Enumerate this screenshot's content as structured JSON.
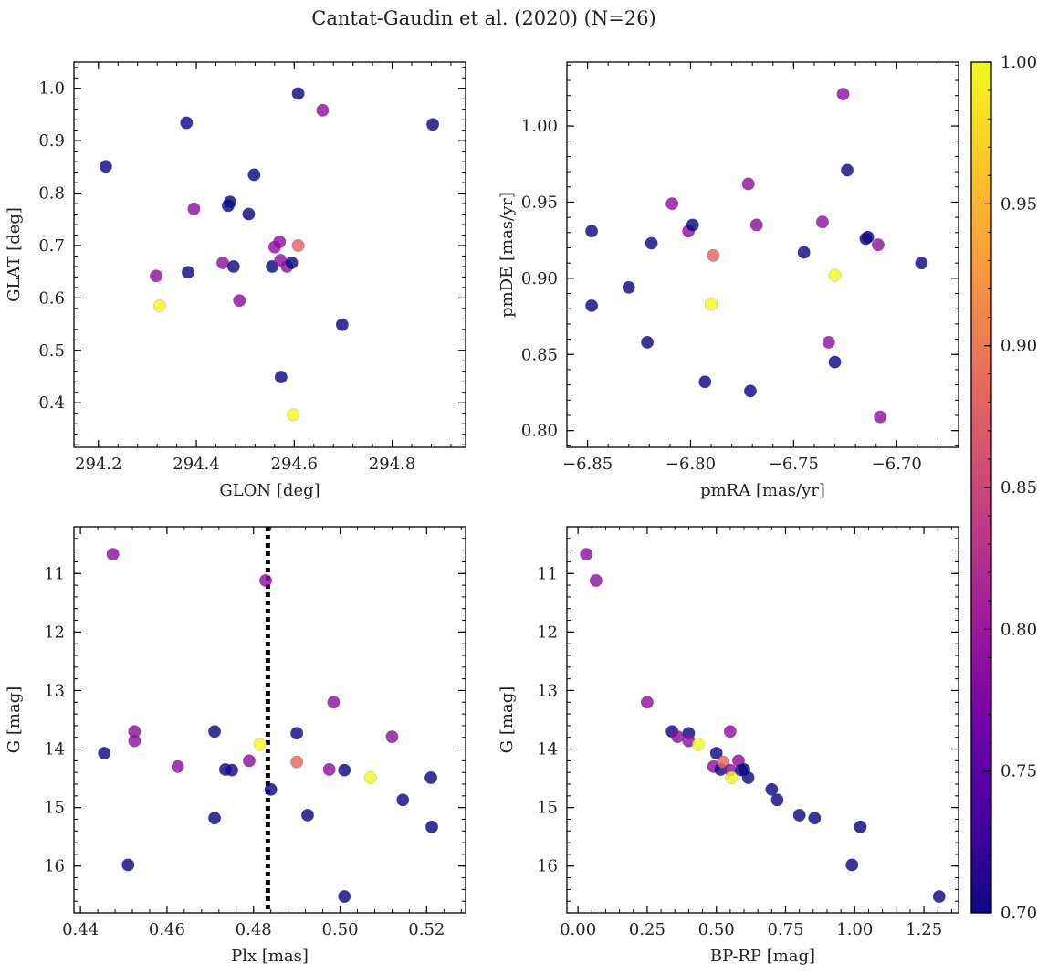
{
  "figure": {
    "title": "Cantat-Gaudin et al. (2020) (N=26)"
  },
  "colorbar": {
    "min": 0.7,
    "max": 1.0,
    "colormap": "plasma",
    "ticks": [
      0.7,
      0.75,
      0.8,
      0.85,
      0.9,
      0.95,
      1.0
    ],
    "tick_labels": [
      "0.70",
      "0.75",
      "0.80",
      "0.85",
      "0.90",
      "0.95",
      "1.00"
    ]
  },
  "colors": {
    "plasma_stops": [
      "#0d0887",
      "#46039f",
      "#7201a8",
      "#9c179e",
      "#bd3786",
      "#d8576b",
      "#ed7953",
      "#fb9f3a",
      "#fdca26",
      "#f0f921"
    ],
    "vline": "#000000"
  },
  "chart_data": [
    {
      "type": "scatter",
      "name": "glon-glat",
      "xlabel": "GLON [deg]",
      "ylabel": "GLAT [deg]",
      "xlim": [
        294.15,
        294.95
      ],
      "ylim": [
        0.315,
        1.05
      ],
      "y_inverted": false,
      "xticks": [
        294.2,
        294.4,
        294.6,
        294.8
      ],
      "xtick_labels": [
        "294.2",
        "294.4",
        "294.6",
        "294.8"
      ],
      "yticks": [
        0.4,
        0.5,
        0.6,
        0.7,
        0.8,
        0.9,
        1.0
      ],
      "ytick_labels": [
        "0.4",
        "0.5",
        "0.6",
        "0.7",
        "0.8",
        "0.9",
        "1.0"
      ],
      "points": [
        {
          "x": 294.215,
          "y": 0.851,
          "c": 0.7
        },
        {
          "x": 294.38,
          "y": 0.934,
          "c": 0.7
        },
        {
          "x": 294.383,
          "y": 0.649,
          "c": 0.7
        },
        {
          "x": 294.318,
          "y": 0.642,
          "c": 0.79
        },
        {
          "x": 294.325,
          "y": 0.585,
          "c": 1.0
        },
        {
          "x": 294.395,
          "y": 0.77,
          "c": 0.79
        },
        {
          "x": 294.454,
          "y": 0.667,
          "c": 0.79
        },
        {
          "x": 294.465,
          "y": 0.776,
          "c": 0.7
        },
        {
          "x": 294.469,
          "y": 0.783,
          "c": 0.7
        },
        {
          "x": 294.476,
          "y": 0.66,
          "c": 0.7
        },
        {
          "x": 294.488,
          "y": 0.595,
          "c": 0.79
        },
        {
          "x": 294.507,
          "y": 0.76,
          "c": 0.7
        },
        {
          "x": 294.518,
          "y": 0.835,
          "c": 0.7
        },
        {
          "x": 294.555,
          "y": 0.66,
          "c": 0.7
        },
        {
          "x": 294.56,
          "y": 0.697,
          "c": 0.79
        },
        {
          "x": 294.57,
          "y": 0.707,
          "c": 0.79
        },
        {
          "x": 294.572,
          "y": 0.672,
          "c": 0.79
        },
        {
          "x": 294.573,
          "y": 0.449,
          "c": 0.7
        },
        {
          "x": 294.585,
          "y": 0.66,
          "c": 0.79
        },
        {
          "x": 294.595,
          "y": 0.667,
          "c": 0.7
        },
        {
          "x": 294.598,
          "y": 0.377,
          "c": 1.0
        },
        {
          "x": 294.608,
          "y": 0.99,
          "c": 0.7
        },
        {
          "x": 294.608,
          "y": 0.7,
          "c": 0.88
        },
        {
          "x": 294.658,
          "y": 0.958,
          "c": 0.79
        },
        {
          "x": 294.698,
          "y": 0.549,
          "c": 0.7
        },
        {
          "x": 294.883,
          "y": 0.931,
          "c": 0.7
        }
      ]
    },
    {
      "type": "scatter",
      "name": "pmra-pmde",
      "xlabel": "pmRA [mas/yr]",
      "ylabel": "pmDE [mas/yr]",
      "xlim": [
        -6.86,
        -6.67
      ],
      "ylim": [
        0.789,
        1.042
      ],
      "y_inverted": false,
      "xticks": [
        -6.85,
        -6.8,
        -6.75,
        -6.7
      ],
      "xtick_labels": [
        "−6.85",
        "−6.80",
        "−6.75",
        "−6.70"
      ],
      "yticks": [
        0.8,
        0.85,
        0.9,
        0.95,
        1.0
      ],
      "ytick_labels": [
        "0.80",
        "0.85",
        "0.90",
        "0.95",
        "1.00"
      ],
      "points": [
        {
          "x": -6.848,
          "y": 0.931,
          "c": 0.7
        },
        {
          "x": -6.848,
          "y": 0.882,
          "c": 0.7
        },
        {
          "x": -6.83,
          "y": 0.894,
          "c": 0.7
        },
        {
          "x": -6.821,
          "y": 0.858,
          "c": 0.7
        },
        {
          "x": -6.819,
          "y": 0.923,
          "c": 0.7
        },
        {
          "x": -6.809,
          "y": 0.949,
          "c": 0.79
        },
        {
          "x": -6.801,
          "y": 0.931,
          "c": 0.79
        },
        {
          "x": -6.799,
          "y": 0.935,
          "c": 0.7
        },
        {
          "x": -6.793,
          "y": 0.832,
          "c": 0.7
        },
        {
          "x": -6.789,
          "y": 0.915,
          "c": 0.88
        },
        {
          "x": -6.79,
          "y": 0.883,
          "c": 1.0
        },
        {
          "x": -6.772,
          "y": 0.962,
          "c": 0.79
        },
        {
          "x": -6.771,
          "y": 0.826,
          "c": 0.7
        },
        {
          "x": -6.768,
          "y": 0.935,
          "c": 0.79
        },
        {
          "x": -6.745,
          "y": 0.917,
          "c": 0.7
        },
        {
          "x": -6.736,
          "y": 0.937,
          "c": 0.79
        },
        {
          "x": -6.733,
          "y": 0.858,
          "c": 0.79
        },
        {
          "x": -6.73,
          "y": 0.902,
          "c": 1.0
        },
        {
          "x": -6.73,
          "y": 0.845,
          "c": 0.7
        },
        {
          "x": -6.726,
          "y": 1.021,
          "c": 0.79
        },
        {
          "x": -6.724,
          "y": 0.971,
          "c": 0.7
        },
        {
          "x": -6.715,
          "y": 0.926,
          "c": 0.7
        },
        {
          "x": -6.714,
          "y": 0.927,
          "c": 0.7
        },
        {
          "x": -6.709,
          "y": 0.922,
          "c": 0.79
        },
        {
          "x": -6.708,
          "y": 0.809,
          "c": 0.79
        },
        {
          "x": -6.688,
          "y": 0.91,
          "c": 0.7
        }
      ]
    },
    {
      "type": "scatter",
      "name": "plx-g",
      "xlabel": "Plx [mas]",
      "ylabel": "G [mag]",
      "xlim": [
        0.4385,
        0.529
      ],
      "ylim": [
        10.2,
        16.8
      ],
      "y_inverted": true,
      "vline": {
        "x": 0.4833,
        "style": "dotted"
      },
      "xticks": [
        0.44,
        0.46,
        0.48,
        0.5,
        0.52
      ],
      "xtick_labels": [
        "0.44",
        "0.46",
        "0.48",
        "0.50",
        "0.52"
      ],
      "yticks": [
        11,
        12,
        13,
        14,
        15,
        16
      ],
      "ytick_labels": [
        "11",
        "12",
        "13",
        "14",
        "15",
        "16"
      ],
      "points": [
        {
          "x": 0.4475,
          "y": 10.67,
          "c": 0.79
        },
        {
          "x": 0.4828,
          "y": 11.12,
          "c": 0.79
        },
        {
          "x": 0.4455,
          "y": 14.07,
          "c": 0.7
        },
        {
          "x": 0.4525,
          "y": 13.7,
          "c": 0.79
        },
        {
          "x": 0.4525,
          "y": 13.86,
          "c": 0.79
        },
        {
          "x": 0.451,
          "y": 15.98,
          "c": 0.7
        },
        {
          "x": 0.4625,
          "y": 14.3,
          "c": 0.79
        },
        {
          "x": 0.471,
          "y": 13.7,
          "c": 0.7
        },
        {
          "x": 0.471,
          "y": 15.18,
          "c": 0.7
        },
        {
          "x": 0.4735,
          "y": 14.35,
          "c": 0.7
        },
        {
          "x": 0.475,
          "y": 14.36,
          "c": 0.7
        },
        {
          "x": 0.479,
          "y": 14.2,
          "c": 0.79
        },
        {
          "x": 0.4815,
          "y": 13.92,
          "c": 1.0
        },
        {
          "x": 0.484,
          "y": 14.69,
          "c": 0.7
        },
        {
          "x": 0.49,
          "y": 13.73,
          "c": 0.7
        },
        {
          "x": 0.49,
          "y": 14.22,
          "c": 0.88
        },
        {
          "x": 0.4925,
          "y": 15.13,
          "c": 0.7
        },
        {
          "x": 0.4975,
          "y": 14.35,
          "c": 0.79
        },
        {
          "x": 0.4985,
          "y": 13.2,
          "c": 0.79
        },
        {
          "x": 0.501,
          "y": 14.36,
          "c": 0.7
        },
        {
          "x": 0.501,
          "y": 16.52,
          "c": 0.7
        },
        {
          "x": 0.507,
          "y": 14.49,
          "c": 1.0
        },
        {
          "x": 0.512,
          "y": 13.79,
          "c": 0.79
        },
        {
          "x": 0.5145,
          "y": 14.87,
          "c": 0.7
        },
        {
          "x": 0.521,
          "y": 14.49,
          "c": 0.7
        },
        {
          "x": 0.5212,
          "y": 15.33,
          "c": 0.7
        }
      ]
    },
    {
      "type": "scatter",
      "name": "bprp-g",
      "xlabel": "BP-RP [mag]",
      "ylabel": "G [mag]",
      "xlim": [
        -0.04,
        1.375
      ],
      "ylim": [
        10.2,
        16.8
      ],
      "y_inverted": true,
      "xticks": [
        0.0,
        0.25,
        0.5,
        0.75,
        1.0,
        1.25
      ],
      "xtick_labels": [
        "0.00",
        "0.25",
        "0.50",
        "0.75",
        "1.00",
        "1.25"
      ],
      "yticks": [
        11,
        12,
        13,
        14,
        15,
        16
      ],
      "ytick_labels": [
        "11",
        "12",
        "13",
        "14",
        "15",
        "16"
      ],
      "points": [
        {
          "x": 0.03,
          "y": 10.67,
          "c": 0.79
        },
        {
          "x": 0.065,
          "y": 11.12,
          "c": 0.79
        },
        {
          "x": 0.25,
          "y": 13.2,
          "c": 0.79
        },
        {
          "x": 0.34,
          "y": 13.7,
          "c": 0.7
        },
        {
          "x": 0.36,
          "y": 13.79,
          "c": 0.79
        },
        {
          "x": 0.4,
          "y": 13.73,
          "c": 0.7
        },
        {
          "x": 0.4,
          "y": 13.86,
          "c": 0.79
        },
        {
          "x": 0.435,
          "y": 13.92,
          "c": 1.0
        },
        {
          "x": 0.49,
          "y": 14.3,
          "c": 0.79
        },
        {
          "x": 0.5,
          "y": 14.07,
          "c": 0.7
        },
        {
          "x": 0.515,
          "y": 14.35,
          "c": 0.7
        },
        {
          "x": 0.525,
          "y": 14.22,
          "c": 0.88
        },
        {
          "x": 0.55,
          "y": 13.7,
          "c": 0.79
        },
        {
          "x": 0.55,
          "y": 14.36,
          "c": 0.79
        },
        {
          "x": 0.555,
          "y": 14.49,
          "c": 1.0
        },
        {
          "x": 0.58,
          "y": 14.2,
          "c": 0.79
        },
        {
          "x": 0.59,
          "y": 14.36,
          "c": 0.7
        },
        {
          "x": 0.615,
          "y": 14.49,
          "c": 0.7
        },
        {
          "x": 0.7,
          "y": 14.69,
          "c": 0.7
        },
        {
          "x": 0.72,
          "y": 14.87,
          "c": 0.7
        },
        {
          "x": 0.8,
          "y": 15.13,
          "c": 0.7
        },
        {
          "x": 0.855,
          "y": 15.18,
          "c": 0.7
        },
        {
          "x": 0.99,
          "y": 15.98,
          "c": 0.7
        },
        {
          "x": 1.02,
          "y": 15.33,
          "c": 0.7
        },
        {
          "x": 1.305,
          "y": 16.52,
          "c": 0.7
        },
        {
          "x": 0.6,
          "y": 14.35,
          "c": 0.7
        }
      ]
    }
  ]
}
